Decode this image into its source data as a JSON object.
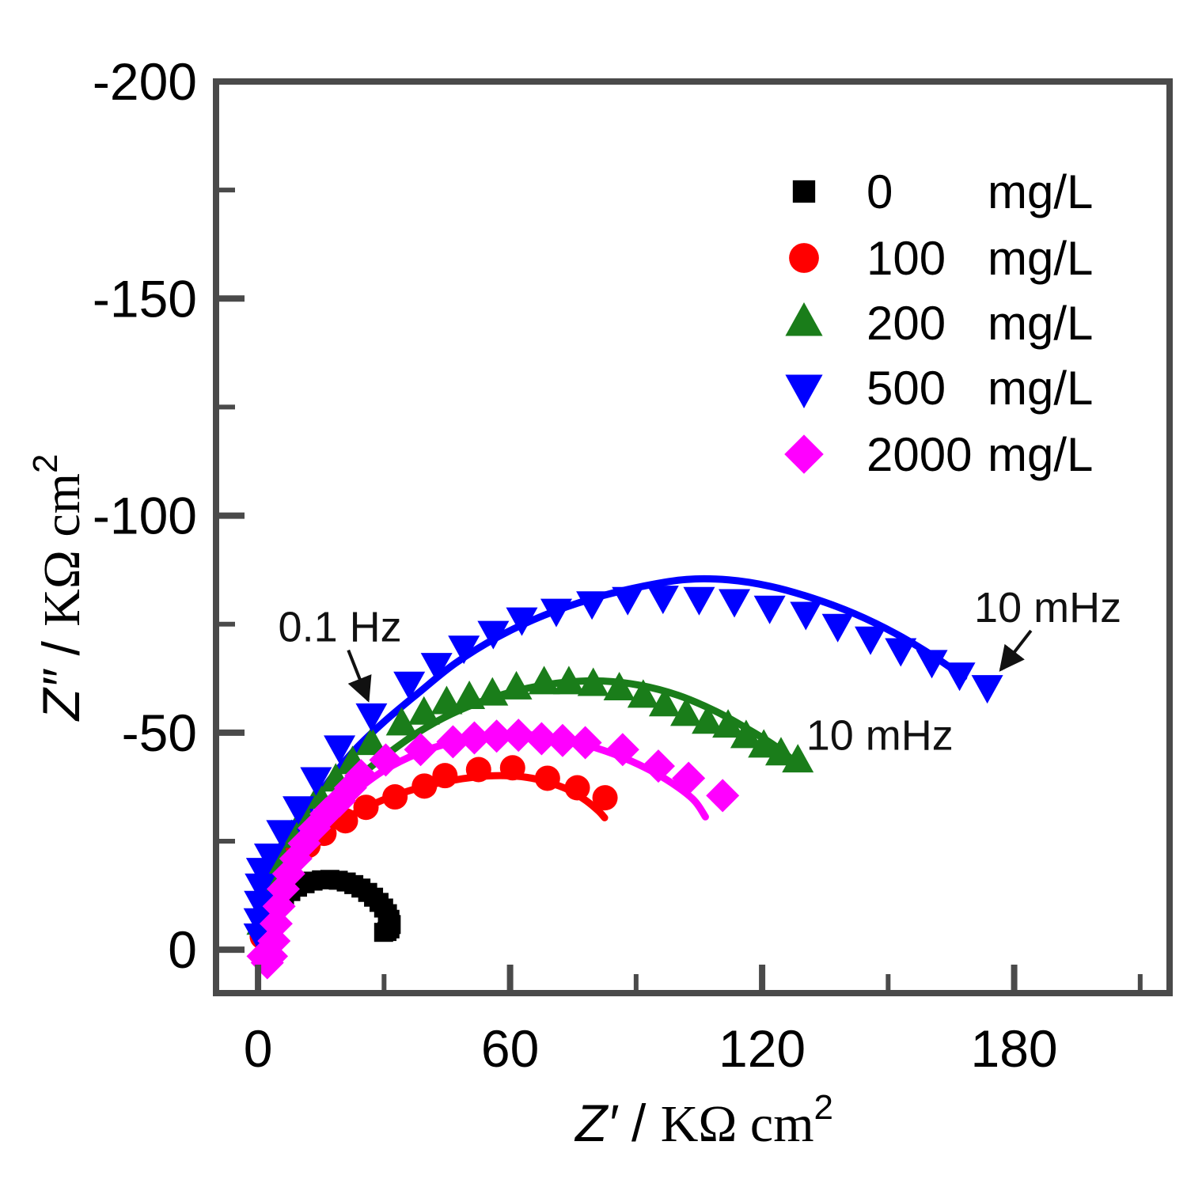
{
  "chart_data": {
    "type": "scatter",
    "title": "",
    "xlabel": {
      "var": "Z′",
      "sep": " / ",
      "unit": "KΩ cm",
      "sup": "2"
    },
    "ylabel": {
      "var": "Z″",
      "sep": " / ",
      "unit": "KΩ cm",
      "sup": "2"
    },
    "xlim": [
      -10,
      217
    ],
    "ylim": [
      10,
      -200
    ],
    "x_ticks_major": [
      {
        "v": 0,
        "label": "0"
      },
      {
        "v": 60,
        "label": "60"
      },
      {
        "v": 120,
        "label": "120"
      },
      {
        "v": 180,
        "label": "180"
      }
    ],
    "x_ticks_minor": [
      30,
      90,
      150,
      210
    ],
    "y_ticks_major": [
      {
        "v": 0,
        "label": "0"
      },
      {
        "v": -50,
        "label": "-50"
      },
      {
        "v": -100,
        "label": "-100"
      },
      {
        "v": -150,
        "label": "-150"
      },
      {
        "v": -200,
        "label": "-200"
      }
    ],
    "y_ticks_minor": [
      -25,
      -75,
      -125,
      -175
    ],
    "grid": false,
    "legend_position": "upper-right",
    "style": {
      "frame_color": "#4a4a4a",
      "arrow_color": "#111111",
      "line_width": 9
    },
    "series": [
      {
        "name": "0 mg/L",
        "value": "0",
        "unit": "mg/L",
        "color": "#000000",
        "marker": "square",
        "has_fit_line": false,
        "points": [
          [
            1.5,
            -3.5
          ],
          [
            1.8,
            -5
          ],
          [
            2.3,
            -6.5
          ],
          [
            3,
            -8
          ],
          [
            3.9,
            -9.5
          ],
          [
            5,
            -11
          ],
          [
            6.3,
            -12.3
          ],
          [
            7.8,
            -13.4
          ],
          [
            9.4,
            -14.4
          ],
          [
            11.2,
            -15.2
          ],
          [
            13.1,
            -15.8
          ],
          [
            15.1,
            -16.1
          ],
          [
            17.1,
            -16.2
          ],
          [
            19.1,
            -16
          ],
          [
            21,
            -15.6
          ],
          [
            22.8,
            -15
          ],
          [
            24.5,
            -14.2
          ],
          [
            26.1,
            -13.2
          ],
          [
            27.5,
            -12.1
          ],
          [
            28.8,
            -10.9
          ],
          [
            29.9,
            -9.6
          ],
          [
            30.8,
            -8.3
          ],
          [
            31.4,
            -7
          ],
          [
            31.7,
            -5.8
          ],
          [
            31.4,
            -4.8
          ],
          [
            30.7,
            -4.2
          ],
          [
            29.9,
            -4
          ]
        ],
        "fit_line": []
      },
      {
        "name": "100 mg/L",
        "value": "100",
        "unit": "mg/L",
        "color": "#ff0000",
        "marker": "circle",
        "has_fit_line": true,
        "points": [
          [
            1,
            -3
          ],
          [
            1.7,
            -6
          ],
          [
            2.6,
            -9
          ],
          [
            3.8,
            -12
          ],
          [
            5.2,
            -15.2
          ],
          [
            6.8,
            -18.3
          ],
          [
            8.7,
            -21.3
          ],
          [
            11.9,
            -24
          ],
          [
            15.7,
            -26.8
          ],
          [
            20.8,
            -29.7
          ],
          [
            25.7,
            -32.8
          ],
          [
            32.6,
            -35.2
          ],
          [
            39.6,
            -37.7
          ],
          [
            44.5,
            -40.1
          ],
          [
            52.5,
            -41.5
          ],
          [
            60.6,
            -41.9
          ],
          [
            68.9,
            -39.5
          ],
          [
            76,
            -37.3
          ],
          [
            82.6,
            -35
          ]
        ],
        "fit_line": [
          [
            1.5,
            1
          ],
          [
            2,
            -4
          ],
          [
            3,
            -8.5
          ],
          [
            5,
            -13.5
          ],
          [
            8,
            -18.5
          ],
          [
            12,
            -23.4
          ],
          [
            17,
            -27.7
          ],
          [
            23,
            -31.4
          ],
          [
            30,
            -34.6
          ],
          [
            38,
            -37.2
          ],
          [
            45,
            -38.8
          ],
          [
            52,
            -39.8
          ],
          [
            58,
            -40.1
          ],
          [
            64,
            -39.7
          ],
          [
            69,
            -38.6
          ],
          [
            74,
            -36.8
          ],
          [
            78,
            -34.4
          ],
          [
            81,
            -32
          ],
          [
            82.5,
            -30.4
          ]
        ]
      },
      {
        "name": "200 mg/L",
        "value": "200",
        "unit": "mg/L",
        "color": "#1a7d1a",
        "marker": "triangle-up",
        "has_fit_line": true,
        "points": [
          [
            1,
            -6
          ],
          [
            2,
            -11
          ],
          [
            3.5,
            -16
          ],
          [
            5.5,
            -21
          ],
          [
            8,
            -26
          ],
          [
            11,
            -30.5
          ],
          [
            14.5,
            -35
          ],
          [
            18.5,
            -39
          ],
          [
            22.5,
            -43
          ],
          [
            27,
            -47.4
          ],
          [
            34.2,
            -51.9
          ],
          [
            39.5,
            -54.4
          ],
          [
            44.9,
            -56.8
          ],
          [
            50.3,
            -58
          ],
          [
            55.8,
            -58.8
          ],
          [
            61.5,
            -60.2
          ],
          [
            68.1,
            -61.4
          ],
          [
            74,
            -61.4
          ],
          [
            79.8,
            -61
          ],
          [
            86,
            -60
          ],
          [
            91.7,
            -58.3
          ],
          [
            96.8,
            -56.3
          ],
          [
            101.9,
            -54.1
          ],
          [
            107,
            -52.3
          ],
          [
            111.9,
            -51.4
          ],
          [
            116.2,
            -49
          ],
          [
            120.4,
            -46.8
          ],
          [
            124.5,
            -45
          ],
          [
            128.5,
            -43.4
          ]
        ],
        "fit_line": [
          [
            1.5,
            1
          ],
          [
            2,
            -4
          ],
          [
            3,
            -9
          ],
          [
            5,
            -15
          ],
          [
            8,
            -21
          ],
          [
            12,
            -27
          ],
          [
            17,
            -33
          ],
          [
            23,
            -39
          ],
          [
            30,
            -44.5
          ],
          [
            38,
            -50
          ],
          [
            46,
            -54.3
          ],
          [
            55,
            -57.8
          ],
          [
            64,
            -60.2
          ],
          [
            73,
            -61.6
          ],
          [
            82,
            -61.9
          ],
          [
            91,
            -60.9
          ],
          [
            100,
            -58.6
          ],
          [
            109,
            -54.9
          ],
          [
            117,
            -50.6
          ],
          [
            123,
            -47
          ],
          [
            127.5,
            -43.5
          ]
        ]
      },
      {
        "name": "500 mg/L",
        "value": "500",
        "unit": "mg/L",
        "color": "#0000ff",
        "marker": "triangle-down",
        "has_fit_line": true,
        "points": [
          [
            0.3,
            -3.5
          ],
          [
            0.3,
            -7
          ],
          [
            0.4,
            -11
          ],
          [
            0.6,
            -15
          ],
          [
            0.9,
            -18.6
          ],
          [
            2.8,
            -21.9
          ],
          [
            5.7,
            -27.3
          ],
          [
            9.6,
            -32.8
          ],
          [
            13.8,
            -39.5
          ],
          [
            19.4,
            -46.8
          ],
          [
            27,
            -54.2
          ],
          [
            36,
            -61.5
          ],
          [
            42.5,
            -65.8
          ],
          [
            49,
            -69.8
          ],
          [
            56,
            -73.2
          ],
          [
            62.8,
            -76.3
          ],
          [
            71,
            -78.3
          ],
          [
            79.5,
            -80
          ],
          [
            88,
            -81
          ],
          [
            96.4,
            -81.3
          ],
          [
            105,
            -81
          ],
          [
            113.4,
            -80.5
          ],
          [
            121.8,
            -79
          ],
          [
            130.4,
            -77.6
          ],
          [
            138,
            -74.8
          ],
          [
            145.8,
            -71.9
          ],
          [
            153,
            -69.2
          ],
          [
            160.4,
            -66.5
          ],
          [
            167,
            -63.6
          ],
          [
            173.6,
            -60.7
          ]
        ],
        "fit_line": [
          [
            1.5,
            1
          ],
          [
            2,
            -5
          ],
          [
            3,
            -11
          ],
          [
            5,
            -18
          ],
          [
            8,
            -25
          ],
          [
            12,
            -32
          ],
          [
            17,
            -39
          ],
          [
            23,
            -46
          ],
          [
            30,
            -52.5
          ],
          [
            38,
            -59
          ],
          [
            47,
            -66
          ],
          [
            57,
            -72
          ],
          [
            68,
            -77
          ],
          [
            80,
            -81
          ],
          [
            92,
            -83.8
          ],
          [
            102,
            -85.3
          ],
          [
            112,
            -85.2
          ],
          [
            122,
            -83.7
          ],
          [
            132,
            -81
          ],
          [
            142,
            -77.4
          ],
          [
            152,
            -72.7
          ],
          [
            161,
            -67.5
          ],
          [
            168,
            -62.8
          ]
        ]
      },
      {
        "name": "2000 mg/L",
        "value": "2000",
        "unit": "mg/L",
        "color": "#ff00ff",
        "marker": "diamond",
        "has_fit_line": true,
        "points": [
          [
            1.2,
            1.5
          ],
          [
            2.2,
            3
          ],
          [
            3.2,
            1.5
          ],
          [
            3.8,
            -2
          ],
          [
            4.3,
            -6
          ],
          [
            5,
            -10
          ],
          [
            6,
            -14
          ],
          [
            7.3,
            -17.5
          ],
          [
            9,
            -21
          ],
          [
            11,
            -24.5
          ],
          [
            13.4,
            -28
          ],
          [
            16.2,
            -31.3
          ],
          [
            19.4,
            -34.3
          ],
          [
            22,
            -37.3
          ],
          [
            24.5,
            -40.1
          ],
          [
            30.4,
            -43.7
          ],
          [
            38.7,
            -46.1
          ],
          [
            46.4,
            -47.9
          ],
          [
            51.5,
            -48.8
          ],
          [
            56.8,
            -49.2
          ],
          [
            62,
            -49.4
          ],
          [
            67.5,
            -48.6
          ],
          [
            72.5,
            -48.2
          ],
          [
            77.9,
            -47.7
          ],
          [
            86.8,
            -46.1
          ],
          [
            95.3,
            -42.3
          ],
          [
            102.5,
            -39.5
          ],
          [
            110.6,
            -35.5
          ]
        ],
        "fit_line": [
          [
            2,
            3
          ],
          [
            2.6,
            -2
          ],
          [
            3.6,
            -7.5
          ],
          [
            5,
            -13
          ],
          [
            8,
            -19
          ],
          [
            12,
            -25
          ],
          [
            17,
            -30.8
          ],
          [
            23,
            -36.3
          ],
          [
            30,
            -41.3
          ],
          [
            38,
            -45.2
          ],
          [
            46,
            -47.7
          ],
          [
            55,
            -49.2
          ],
          [
            63,
            -49.6
          ],
          [
            71,
            -48.7
          ],
          [
            79,
            -46.9
          ],
          [
            87,
            -44.2
          ],
          [
            94,
            -41
          ],
          [
            100,
            -37.4
          ],
          [
            104,
            -34.2
          ],
          [
            106.5,
            -30.6
          ]
        ]
      }
    ],
    "annotations": [
      {
        "text": "0.1 Hz",
        "x": 19.5,
        "y": -74.5,
        "arrow": {
          "x1": 21.5,
          "y1": -69,
          "x2": 26.2,
          "y2": -57.5
        }
      },
      {
        "text": "10 mHz",
        "x": 188,
        "y": -79,
        "arrow": {
          "x1": 184,
          "y1": -73.5,
          "x2": 176.8,
          "y2": -64.5
        }
      },
      {
        "text": "10 mHz",
        "x": 148,
        "y": -49.5,
        "arrow": null
      }
    ],
    "legend": {
      "rows": [
        {
          "value": "0",
          "unit": "mg/L",
          "color": "#000000",
          "marker": "square"
        },
        {
          "value": "100",
          "unit": "mg/L",
          "color": "#ff0000",
          "marker": "circle"
        },
        {
          "value": "200",
          "unit": "mg/L",
          "color": "#1a7d1a",
          "marker": "triangle-up"
        },
        {
          "value": "500",
          "unit": "mg/L",
          "color": "#0000ff",
          "marker": "triangle-down"
        },
        {
          "value": "2000",
          "unit": "mg/L",
          "color": "#ff00ff",
          "marker": "diamond"
        }
      ]
    }
  }
}
